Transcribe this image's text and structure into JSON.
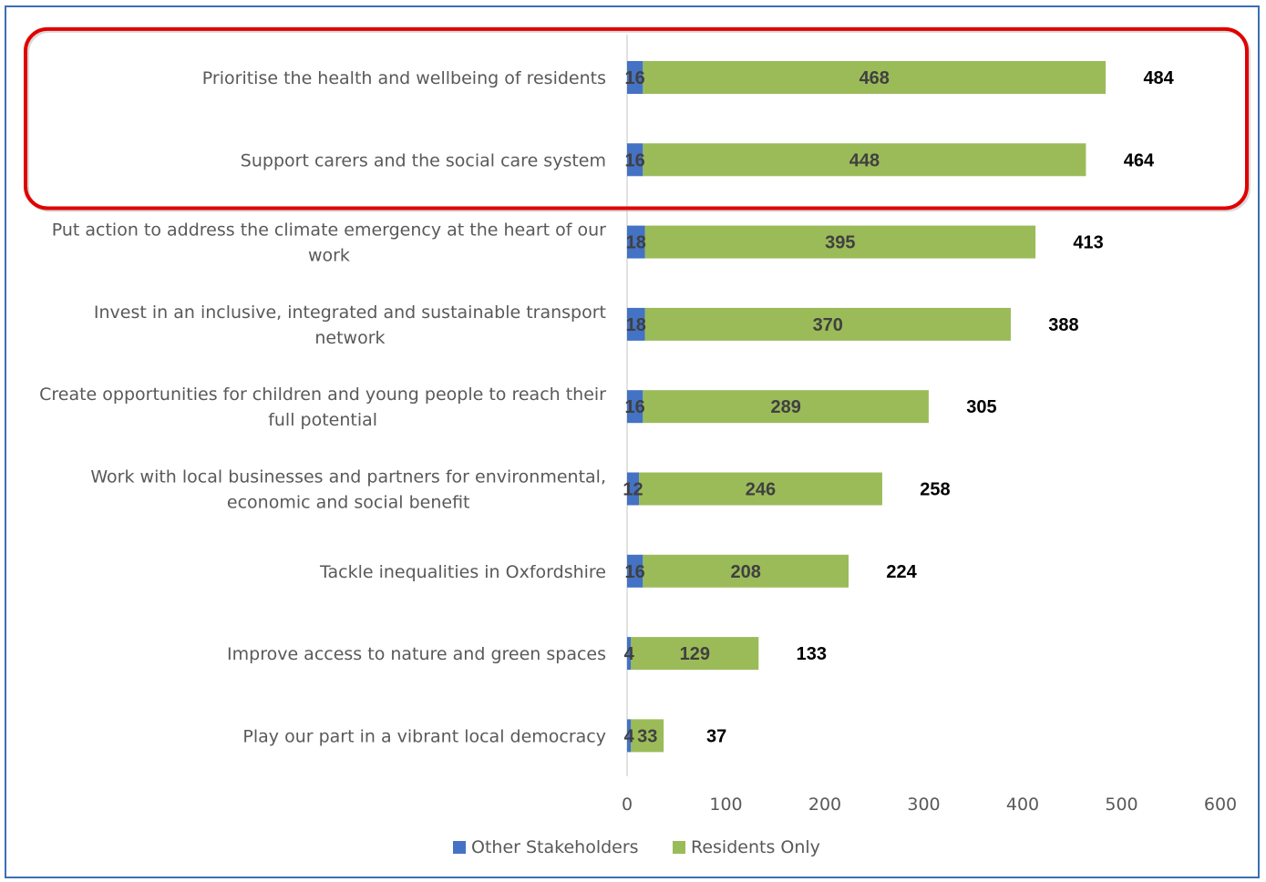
{
  "chart_data": {
    "type": "bar",
    "orientation": "horizontal",
    "stacked": true,
    "categories": [
      "Prioritise the health and wellbeing of residents",
      "Support carers and the social care system",
      "Put action to address the climate emergency at the heart of our work",
      "Invest in an inclusive, integrated and sustainable transport network",
      "Create opportunities for children and young people to reach their full potential",
      "Work with local businesses and partners for environmental, economic and social benefit",
      "Tackle inequalities in Oxfordshire",
      "Improve access to nature and green spaces",
      "Play our part in a vibrant local democracy"
    ],
    "category_lines": [
      [
        "Prioritise the health and wellbeing of residents"
      ],
      [
        "Support carers and the social care system"
      ],
      [
        "Put action to address the climate emergency at the heart of our",
        "work"
      ],
      [
        "Invest in an inclusive, integrated and sustainable transport",
        "network"
      ],
      [
        "Create opportunities for children and young people to reach their",
        "full potential"
      ],
      [
        "Work with local businesses and partners for environmental,",
        "economic and social benefit"
      ],
      [
        "Tackle inequalities in Oxfordshire"
      ],
      [
        "Improve access to nature and green spaces"
      ],
      [
        "Play our part in a vibrant local democracy"
      ]
    ],
    "series": [
      {
        "name": "Other Stakeholders",
        "color": "#4472c4",
        "values": [
          16,
          16,
          18,
          18,
          16,
          12,
          16,
          4,
          4
        ]
      },
      {
        "name": "Residents Only",
        "color": "#9bbb59",
        "values": [
          468,
          448,
          395,
          370,
          289,
          246,
          208,
          129,
          33
        ]
      }
    ],
    "totals": [
      484,
      464,
      413,
      388,
      305,
      258,
      224,
      133,
      37
    ],
    "xlim": [
      0,
      600
    ],
    "xticks": [
      0,
      100,
      200,
      300,
      400,
      500,
      600
    ],
    "grid": false,
    "legend": "bottom",
    "highlight": {
      "categories": [
        0,
        1
      ],
      "color": "#e00000"
    }
  }
}
